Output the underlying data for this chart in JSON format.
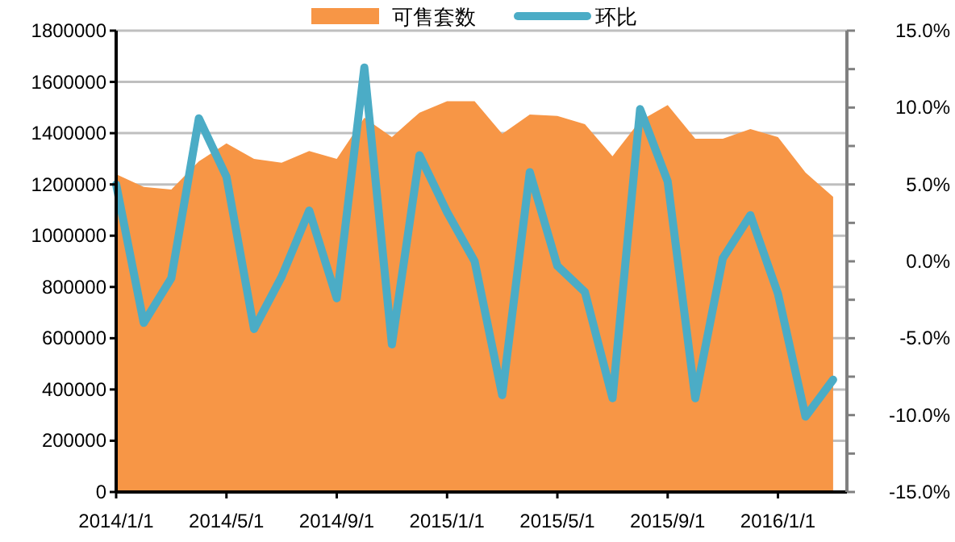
{
  "chart_data": {
    "type": "area",
    "categories": [
      "2014/1/1",
      null,
      null,
      null,
      "2014/5/1",
      null,
      null,
      null,
      "2014/9/1",
      null,
      null,
      null,
      "2015/1/1",
      null,
      null,
      null,
      "2015/5/1",
      null,
      null,
      null,
      "2015/9/1",
      null,
      null,
      null,
      "2016/1/1",
      null,
      null
    ],
    "series": [
      {
        "name": "可售套数",
        "type": "area",
        "color": "#f79646",
        "values": [
          1240000,
          1190000,
          1180000,
          1290000,
          1360000,
          1300000,
          1285000,
          1330000,
          1300000,
          1460000,
          1385000,
          1480000,
          1525000,
          1525000,
          1397000,
          1473000,
          1467000,
          1435000,
          1310000,
          1448000,
          1510000,
          1378000,
          1378000,
          1416000,
          1385000,
          1246000,
          1152000
        ]
      },
      {
        "name": "环比",
        "type": "line",
        "axis": "y2",
        "color": "#4bacc6",
        "values": [
          5.0,
          -4.0,
          -1.1,
          9.3,
          5.5,
          -4.4,
          -1.0,
          3.3,
          -2.4,
          12.6,
          -5.4,
          6.9,
          3.2,
          0.0,
          -8.7,
          5.8,
          -0.3,
          -2.0,
          -8.9,
          9.9,
          5.2,
          -8.9,
          0.2,
          3.0,
          -2.1,
          -10.1,
          -7.7
        ]
      }
    ],
    "ylim": [
      0,
      1800000
    ],
    "yticks": [
      0,
      200000,
      400000,
      600000,
      800000,
      1000000,
      1200000,
      1400000,
      1600000,
      1800000
    ],
    "y2lim": [
      -15,
      15
    ],
    "y2ticks": [
      {
        "value": -15,
        "label": "-15.0%"
      },
      {
        "value": -12.5,
        "label": null
      },
      {
        "value": -10,
        "label": "-10.0%"
      },
      {
        "value": -7.5,
        "label": null
      },
      {
        "value": -5,
        "label": "-5.0%"
      },
      {
        "value": -2.5,
        "label": null
      },
      {
        "value": 0,
        "label": "0.0%"
      },
      {
        "value": 2.5,
        "label": null
      },
      {
        "value": 5,
        "label": "5.0%"
      },
      {
        "value": 7.5,
        "label": null
      },
      {
        "value": 10,
        "label": "10.0%"
      },
      {
        "value": 12.5,
        "label": null
      },
      {
        "value": 15,
        "label": "15.0%"
      }
    ],
    "grid": "y",
    "legend": "top"
  }
}
